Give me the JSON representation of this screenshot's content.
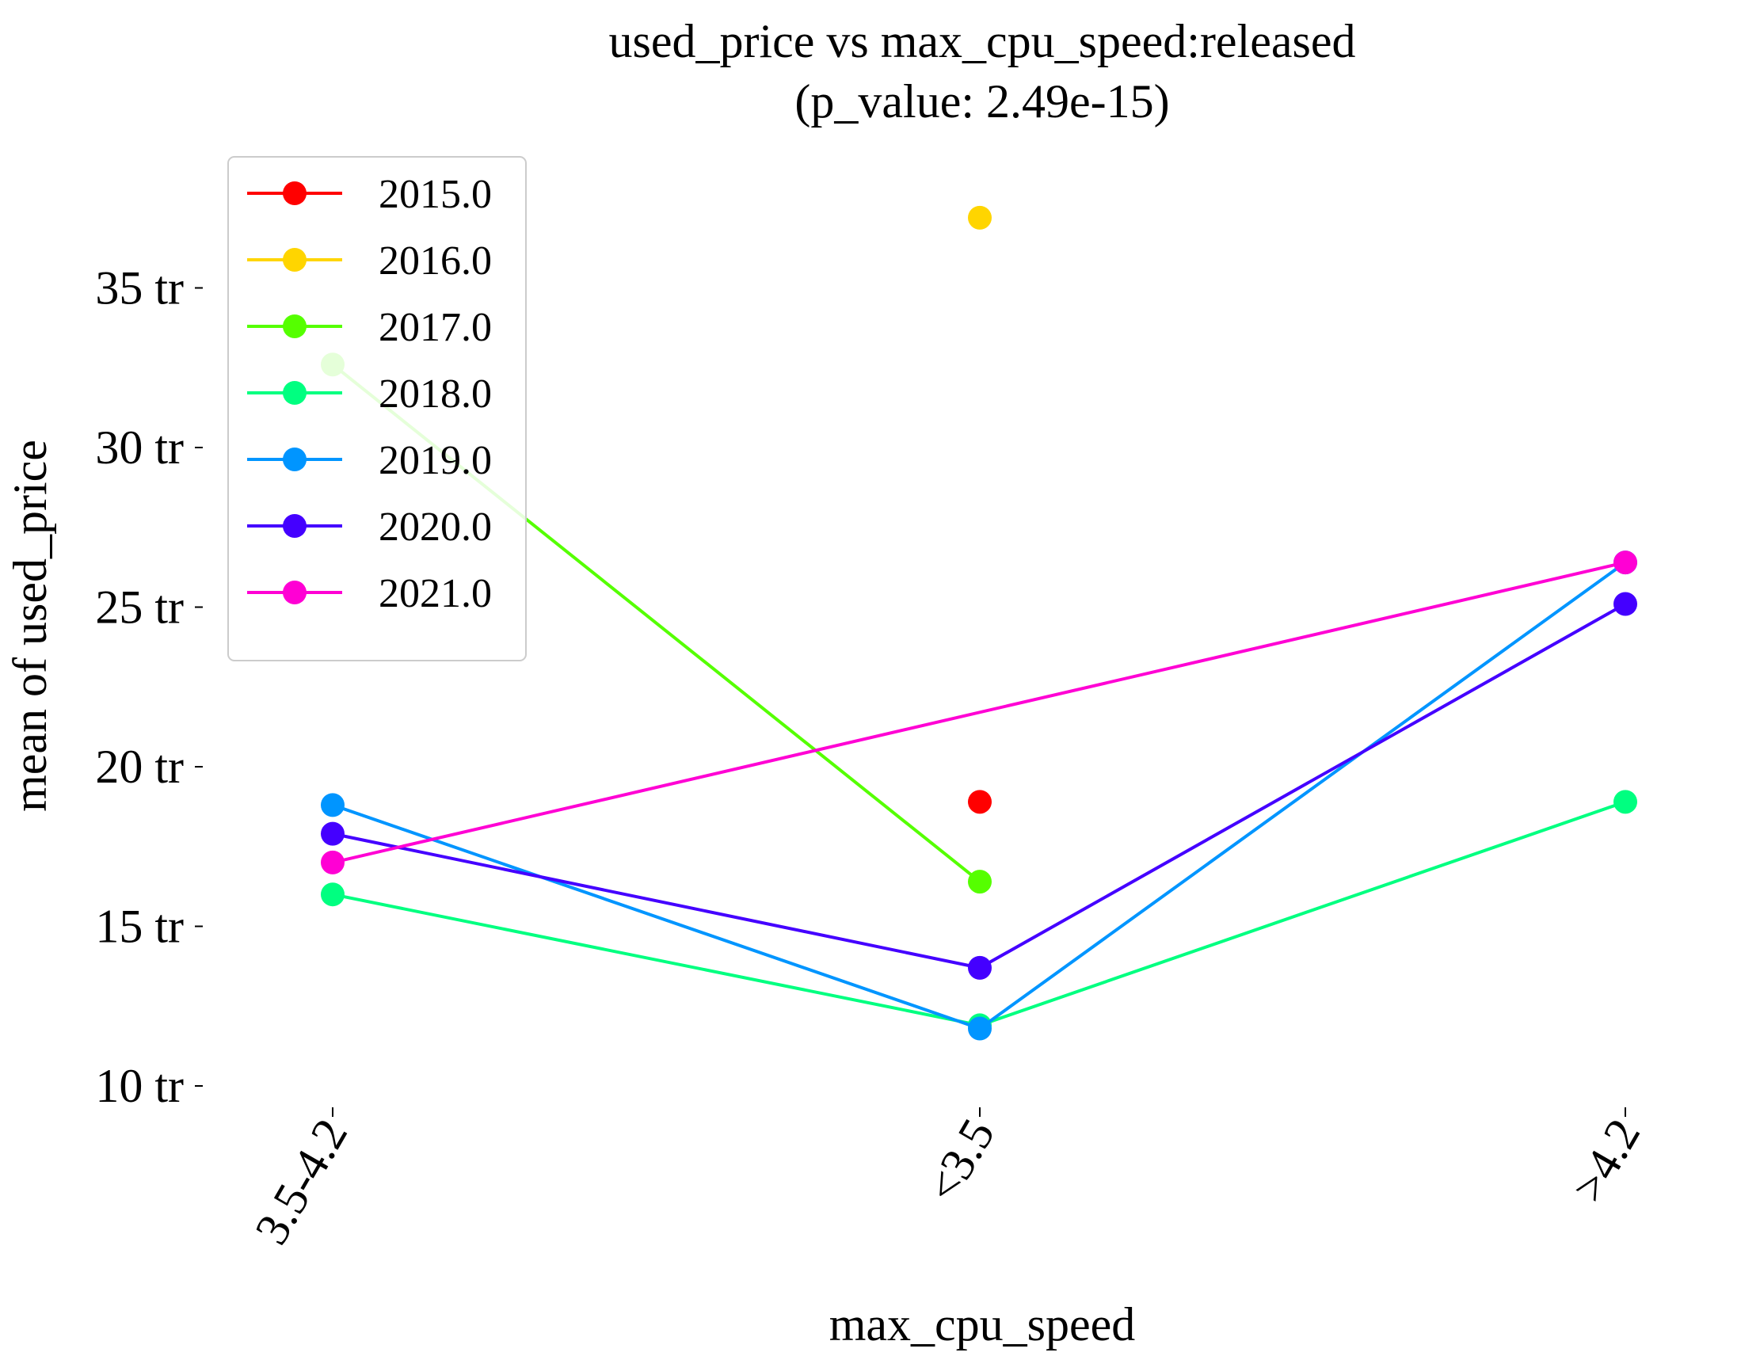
{
  "chart_data": {
    "type": "line",
    "title": "used_price vs max_cpu_speed:released",
    "subtitle": "(p_value: 2.49e-15)",
    "xlabel": "max_cpu_speed",
    "ylabel": "mean of used_price",
    "categories": [
      "3.5-4.2",
      "<3.5",
      ">4.2"
    ],
    "ylim": [
      9.2,
      39.5
    ],
    "yticks": [
      10,
      15,
      20,
      25,
      30,
      35
    ],
    "ytick_labels": [
      "10 tr",
      "15 tr",
      "20 tr",
      "25 tr",
      "30 tr",
      "35 tr"
    ],
    "grid": false,
    "legend_position": "top-left",
    "series": [
      {
        "name": "2015.0",
        "color": "#ff0000",
        "values": [
          null,
          18.9,
          null
        ]
      },
      {
        "name": "2016.0",
        "color": "#ffd500",
        "values": [
          null,
          37.2,
          null
        ]
      },
      {
        "name": "2017.0",
        "color": "#55ff00",
        "values": [
          32.6,
          16.4,
          null
        ]
      },
      {
        "name": "2018.0",
        "color": "#00ff80",
        "values": [
          16.0,
          11.9,
          18.9
        ]
      },
      {
        "name": "2019.0",
        "color": "#0095ff",
        "values": [
          18.8,
          11.8,
          26.4
        ]
      },
      {
        "name": "2020.0",
        "color": "#4400ff",
        "values": [
          17.9,
          13.7,
          25.1
        ]
      },
      {
        "name": "2021.0",
        "color": "#ff00d4",
        "values": [
          17.0,
          null,
          26.4
        ]
      }
    ]
  }
}
